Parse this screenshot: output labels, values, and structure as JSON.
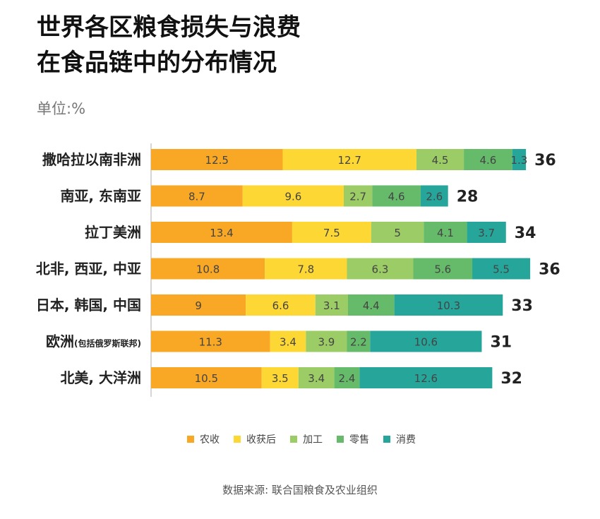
{
  "title_line1": "世界各区粮食损失与浪费",
  "title_line2": "在食品链中的分布情况",
  "unit": "单位:%",
  "source": "数据来源: 联合国粮食及农业组织",
  "chart_data": {
    "type": "bar",
    "orientation": "horizontal",
    "stacked": true,
    "categories": [
      "撒哈拉以南非洲",
      "南亚, 东南亚",
      "拉丁美洲",
      "北非, 西亚, 中亚",
      "日本, 韩国, 中国",
      "欧洲",
      "北美, 大洋洲"
    ],
    "category_notes": [
      "",
      "",
      "",
      "",
      "",
      "(包括俄罗斯联邦)",
      ""
    ],
    "totals": [
      36,
      28,
      34,
      36,
      33,
      31,
      32
    ],
    "series": [
      {
        "name": "农收",
        "color": "#F9A825",
        "values": [
          12.5,
          8.7,
          13.4,
          10.8,
          9,
          11.3,
          10.5
        ]
      },
      {
        "name": "收获后",
        "color": "#FDD835",
        "values": [
          12.7,
          9.6,
          7.5,
          7.8,
          6.6,
          3.4,
          3.5
        ]
      },
      {
        "name": "加工",
        "color": "#9CCC65",
        "values": [
          4.5,
          2.7,
          5,
          6.3,
          3.1,
          3.9,
          3.4
        ]
      },
      {
        "name": "零售",
        "color": "#66BB6A",
        "values": [
          4.6,
          4.6,
          4.1,
          5.6,
          4.4,
          2.2,
          2.4
        ]
      },
      {
        "name": "消费",
        "color": "#26A69A",
        "values": [
          1.3,
          2.6,
          3.7,
          5.5,
          10.3,
          10.6,
          12.6
        ]
      }
    ],
    "xlim": [
      0,
      37
    ],
    "legend_position": "bottom",
    "grid": false
  }
}
